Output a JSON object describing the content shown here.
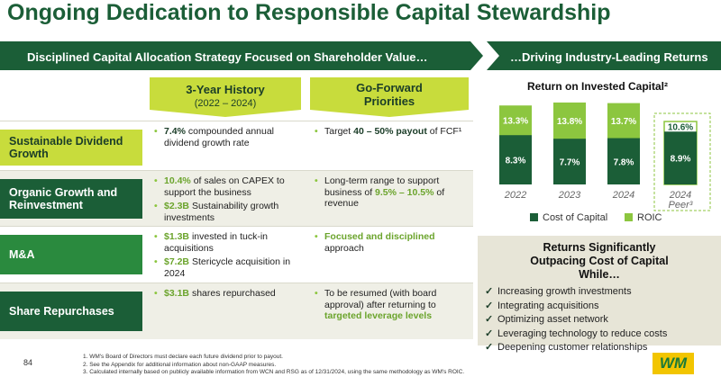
{
  "header": {
    "title": "Ongoing Dedication to Responsible Capital Stewardship"
  },
  "banners": {
    "left": "Disciplined Capital Allocation Strategy Focused on Shareholder Value…",
    "right": "…Driving Industry-Leading Returns"
  },
  "table": {
    "columns": [
      {
        "title": "3-Year History",
        "subtitle": "(2022 – 2024)"
      },
      {
        "title": "Go-Forward Priorities"
      }
    ],
    "rows": [
      {
        "label": "Sustainable Dividend Growth",
        "history": [
          [
            {
              "text": "7.4%",
              "em": "bold"
            },
            {
              "text": " compounded annual dividend growth rate"
            }
          ]
        ],
        "forward": [
          [
            {
              "text": "Target "
            },
            {
              "text": "40 – 50% payout",
              "em": "bold"
            },
            {
              "text": " of FCF¹"
            }
          ]
        ]
      },
      {
        "label": "Organic Growth and Reinvestment",
        "history": [
          [
            {
              "text": "10.4%",
              "em": "green"
            },
            {
              "text": " of sales on CAPEX to support the business"
            }
          ],
          [
            {
              "text": "$2.3B",
              "em": "green"
            },
            {
              "text": " Sustainability growth investments"
            }
          ]
        ],
        "forward": [
          [
            {
              "text": "Long-term range to support business of "
            },
            {
              "text": "9.5% – 10.5%",
              "em": "green"
            },
            {
              "text": " of revenue"
            }
          ]
        ]
      },
      {
        "label": "M&A",
        "history": [
          [
            {
              "text": "$1.3B",
              "em": "green"
            },
            {
              "text": " invested in tuck-in acquisitions"
            }
          ],
          [
            {
              "text": "$7.2B",
              "em": "green"
            },
            {
              "text": " Stericycle acquisition in 2024"
            }
          ]
        ],
        "forward": [
          [
            {
              "text": "Focused and disciplined",
              "em": "green"
            },
            {
              "text": " approach"
            }
          ]
        ]
      },
      {
        "label": "Share Repurchases",
        "history": [
          [
            {
              "text": "$3.1B",
              "em": "green"
            },
            {
              "text": " shares repurchased"
            }
          ]
        ],
        "forward": [
          [
            {
              "text": "To be resumed (with board approval) after returning to "
            },
            {
              "text": "targeted leverage levels",
              "em": "green"
            }
          ]
        ]
      }
    ]
  },
  "chart_data": {
    "type": "bar",
    "barmode": "overlay",
    "title": "Return on Invested Capital²",
    "categories": [
      "2022",
      "2023",
      "2024",
      "2024 Peer³"
    ],
    "series": [
      {
        "name": "ROIC",
        "color": "#8cc63f",
        "values": [
          13.3,
          13.8,
          13.7,
          10.6
        ],
        "value_labels": [
          "13.3%",
          "13.8%",
          "13.7%",
          "10.6%"
        ]
      },
      {
        "name": "Cost of Capital",
        "color": "#1b5e37",
        "values": [
          8.3,
          7.7,
          7.8,
          8.9
        ],
        "value_labels": [
          "8.3%",
          "7.7%",
          "7.8%",
          "8.9%"
        ]
      }
    ],
    "legend_order": [
      "Cost of Capital",
      "ROIC"
    ]
  },
  "returns_box": {
    "title": "Returns Significantly Outpacing Cost of Capital While…",
    "items": [
      "Increasing growth investments",
      "Integrating acquisitions",
      "Optimizing asset network",
      "Leveraging technology to reduce costs",
      "Deepening customer relationships"
    ]
  },
  "footnotes": [
    "1. WM's Board of Directors must declare each future dividend prior to payout.",
    "2. See the Appendix for additional information about non-GAAP measures.",
    "3. Calculated internally based on publicly available information from WCN and RSG as of 12/31/2024, using the same methodology as WM's ROIC."
  ],
  "page_number": "84",
  "logo": "WM"
}
